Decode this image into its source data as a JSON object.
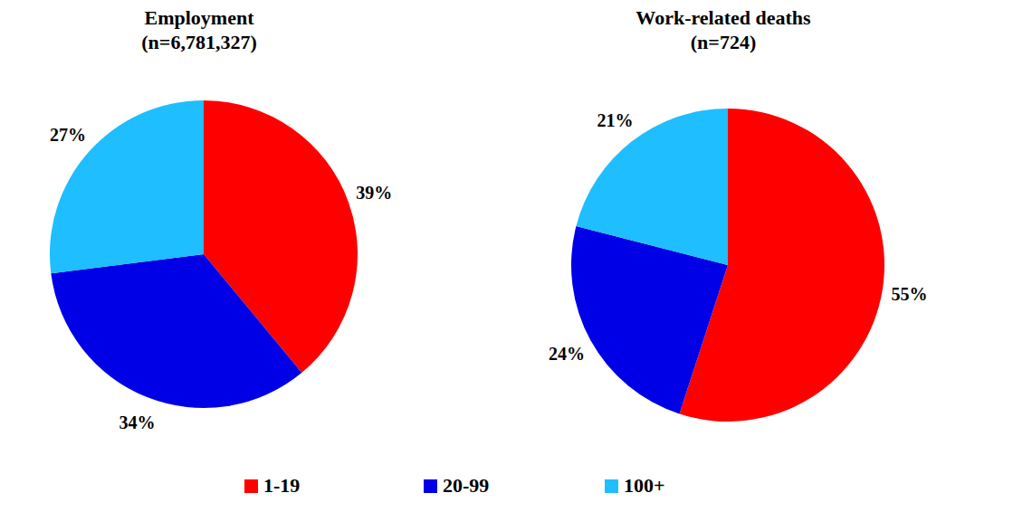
{
  "chart_data": [
    {
      "type": "pie",
      "title": "Employment",
      "subtitle": "(n=6,781,327)",
      "categories": [
        "1-19",
        "20-99",
        "100+"
      ],
      "values": [
        39,
        34,
        27
      ],
      "value_labels": [
        "39%",
        "34%",
        "27%"
      ],
      "data_labels": true,
      "colors": [
        "#ff0000",
        "#0000e6",
        "#1ebeff"
      ],
      "legend": "bottom"
    },
    {
      "type": "pie",
      "title": "Work-related deaths",
      "subtitle": "(n=724)",
      "categories": [
        "1-19",
        "20-99",
        "100+"
      ],
      "values": [
        55,
        24,
        21
      ],
      "value_labels": [
        "55%",
        "24%",
        "21%"
      ],
      "data_labels": true,
      "colors": [
        "#ff0000",
        "#0000e6",
        "#1ebeff"
      ]
    }
  ]
}
